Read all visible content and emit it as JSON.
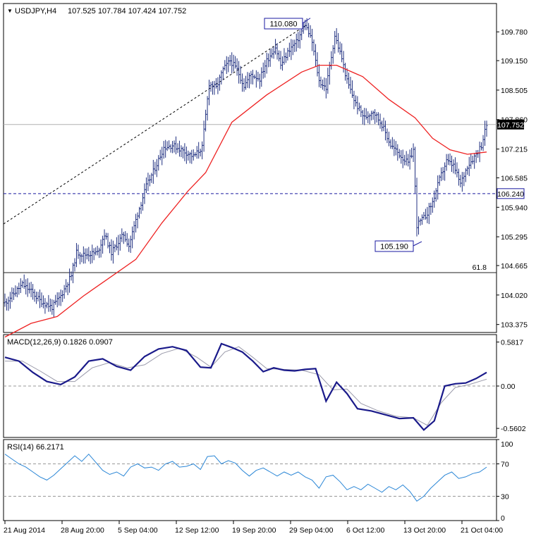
{
  "chart_data": [
    {
      "type": "ohlc",
      "title": "USDJPY,H4",
      "ohlc_readout": "107.525 107.784 107.424 107.752",
      "current_price_label": "107.752",
      "ylim": [
        103.2,
        110.4
      ],
      "y_ticks": [
        "109.780",
        "109.150",
        "108.505",
        "107.860",
        "107.215",
        "106.585",
        "105.940",
        "105.295",
        "104.665",
        "104.020",
        "103.375"
      ],
      "annotations": [
        {
          "label": "110.080",
          "value": 110.08
        },
        {
          "label": "105.190",
          "value": 105.19
        },
        {
          "label": "106.240",
          "value": 106.24
        },
        {
          "label": "61.8",
          "value": 104.51
        }
      ],
      "ma_series_name": "",
      "ma_color": "#ee2222",
      "bar_color": "#203080",
      "pivots": [
        {
          "x": 0,
          "y": 103.85
        },
        {
          "x": 5,
          "y": 104.05
        },
        {
          "x": 10,
          "y": 104.25
        },
        {
          "x": 15,
          "y": 104.1
        },
        {
          "x": 20,
          "y": 103.9
        },
        {
          "x": 27,
          "y": 103.75
        },
        {
          "x": 32,
          "y": 104.0
        },
        {
          "x": 38,
          "y": 104.45
        },
        {
          "x": 41,
          "y": 104.95
        },
        {
          "x": 45,
          "y": 104.9
        },
        {
          "x": 53,
          "y": 104.95
        },
        {
          "x": 57,
          "y": 105.35
        },
        {
          "x": 61,
          "y": 104.95
        },
        {
          "x": 68,
          "y": 105.35
        },
        {
          "x": 71,
          "y": 105.1
        },
        {
          "x": 76,
          "y": 105.8
        },
        {
          "x": 81,
          "y": 106.4
        },
        {
          "x": 86,
          "y": 106.8
        },
        {
          "x": 91,
          "y": 107.25
        },
        {
          "x": 96,
          "y": 107.3
        },
        {
          "x": 101,
          "y": 107.2
        },
        {
          "x": 108,
          "y": 107.05
        },
        {
          "x": 113,
          "y": 107.25
        },
        {
          "x": 117,
          "y": 108.65
        },
        {
          "x": 121,
          "y": 108.55
        },
        {
          "x": 125,
          "y": 108.95
        },
        {
          "x": 129,
          "y": 109.15
        },
        {
          "x": 133,
          "y": 108.95
        },
        {
          "x": 137,
          "y": 108.6
        },
        {
          "x": 141,
          "y": 108.85
        },
        {
          "x": 146,
          "y": 108.75
        },
        {
          "x": 150,
          "y": 109.15
        },
        {
          "x": 155,
          "y": 109.45
        },
        {
          "x": 158,
          "y": 109.05
        },
        {
          "x": 163,
          "y": 109.4
        },
        {
          "x": 167,
          "y": 109.55
        },
        {
          "x": 172,
          "y": 109.95
        },
        {
          "x": 176,
          "y": 109.55
        },
        {
          "x": 180,
          "y": 108.7
        },
        {
          "x": 184,
          "y": 108.55
        },
        {
          "x": 189,
          "y": 109.7
        },
        {
          "x": 193,
          "y": 109.2
        },
        {
          "x": 196,
          "y": 108.7
        },
        {
          "x": 201,
          "y": 108.2
        },
        {
          "x": 206,
          "y": 107.9
        },
        {
          "x": 211,
          "y": 108.05
        },
        {
          "x": 216,
          "y": 107.75
        },
        {
          "x": 221,
          "y": 107.3
        },
        {
          "x": 226,
          "y": 107.1
        },
        {
          "x": 231,
          "y": 106.9
        },
        {
          "x": 234,
          "y": 107.2
        },
        {
          "x": 236,
          "y": 105.55
        },
        {
          "x": 241,
          "y": 105.75
        },
        {
          "x": 245,
          "y": 106.05
        },
        {
          "x": 249,
          "y": 106.55
        },
        {
          "x": 253,
          "y": 106.95
        },
        {
          "x": 257,
          "y": 106.85
        },
        {
          "x": 261,
          "y": 106.45
        },
        {
          "x": 265,
          "y": 106.85
        },
        {
          "x": 269,
          "y": 107.05
        },
        {
          "x": 273,
          "y": 107.3
        },
        {
          "x": 276,
          "y": 107.75
        }
      ],
      "ma_values": [
        {
          "x": 0,
          "y": 103.1
        },
        {
          "x": 15,
          "y": 103.4
        },
        {
          "x": 30,
          "y": 103.55
        },
        {
          "x": 45,
          "y": 104.0
        },
        {
          "x": 60,
          "y": 104.4
        },
        {
          "x": 75,
          "y": 104.8
        },
        {
          "x": 90,
          "y": 105.6
        },
        {
          "x": 105,
          "y": 106.3
        },
        {
          "x": 115,
          "y": 106.7
        },
        {
          "x": 130,
          "y": 107.8
        },
        {
          "x": 150,
          "y": 108.4
        },
        {
          "x": 170,
          "y": 108.9
        },
        {
          "x": 180,
          "y": 109.05
        },
        {
          "x": 190,
          "y": 109.05
        },
        {
          "x": 205,
          "y": 108.8
        },
        {
          "x": 220,
          "y": 108.3
        },
        {
          "x": 235,
          "y": 107.9
        },
        {
          "x": 245,
          "y": 107.45
        },
        {
          "x": 255,
          "y": 107.2
        },
        {
          "x": 265,
          "y": 107.1
        },
        {
          "x": 276,
          "y": 107.15
        }
      ]
    },
    {
      "type": "line",
      "title": "MACD(12,26,9) 0.1826 0.0907",
      "ylim": [
        -0.68,
        0.68
      ],
      "y_ticks": [
        "0.5817",
        "0.00",
        "-0.5602"
      ],
      "series": [
        {
          "name": "",
          "color": "#1a1a8a",
          "values": [
            {
              "x": 0,
              "y": 0.38
            },
            {
              "x": 8,
              "y": 0.33
            },
            {
              "x": 16,
              "y": 0.18
            },
            {
              "x": 24,
              "y": 0.06
            },
            {
              "x": 32,
              "y": 0.02
            },
            {
              "x": 40,
              "y": 0.12
            },
            {
              "x": 48,
              "y": 0.33
            },
            {
              "x": 56,
              "y": 0.36
            },
            {
              "x": 64,
              "y": 0.26
            },
            {
              "x": 72,
              "y": 0.21
            },
            {
              "x": 80,
              "y": 0.39
            },
            {
              "x": 88,
              "y": 0.49
            },
            {
              "x": 96,
              "y": 0.52
            },
            {
              "x": 104,
              "y": 0.47
            },
            {
              "x": 112,
              "y": 0.25
            },
            {
              "x": 118,
              "y": 0.24
            },
            {
              "x": 124,
              "y": 0.56
            },
            {
              "x": 130,
              "y": 0.51
            },
            {
              "x": 136,
              "y": 0.45
            },
            {
              "x": 142,
              "y": 0.33
            },
            {
              "x": 148,
              "y": 0.19
            },
            {
              "x": 154,
              "y": 0.24
            },
            {
              "x": 160,
              "y": 0.21
            },
            {
              "x": 166,
              "y": 0.2
            },
            {
              "x": 172,
              "y": 0.22
            },
            {
              "x": 178,
              "y": 0.23
            },
            {
              "x": 184,
              "y": -0.2
            },
            {
              "x": 190,
              "y": 0.05
            },
            {
              "x": 196,
              "y": -0.1
            },
            {
              "x": 202,
              "y": -0.3
            },
            {
              "x": 210,
              "y": -0.33
            },
            {
              "x": 218,
              "y": -0.38
            },
            {
              "x": 226,
              "y": -0.43
            },
            {
              "x": 234,
              "y": -0.42
            },
            {
              "x": 240,
              "y": -0.58
            },
            {
              "x": 246,
              "y": -0.46
            },
            {
              "x": 252,
              "y": 0.0
            },
            {
              "x": 258,
              "y": 0.03
            },
            {
              "x": 264,
              "y": 0.04
            },
            {
              "x": 270,
              "y": 0.1
            },
            {
              "x": 276,
              "y": 0.18
            }
          ]
        },
        {
          "name": "",
          "color": "#9a9aaa",
          "values": [
            {
              "x": 0,
              "y": 0.33
            },
            {
              "x": 10,
              "y": 0.33
            },
            {
              "x": 20,
              "y": 0.2
            },
            {
              "x": 30,
              "y": 0.06
            },
            {
              "x": 40,
              "y": 0.06
            },
            {
              "x": 50,
              "y": 0.24
            },
            {
              "x": 60,
              "y": 0.31
            },
            {
              "x": 70,
              "y": 0.24
            },
            {
              "x": 80,
              "y": 0.28
            },
            {
              "x": 90,
              "y": 0.43
            },
            {
              "x": 100,
              "y": 0.5
            },
            {
              "x": 110,
              "y": 0.38
            },
            {
              "x": 118,
              "y": 0.25
            },
            {
              "x": 126,
              "y": 0.45
            },
            {
              "x": 134,
              "y": 0.52
            },
            {
              "x": 142,
              "y": 0.38
            },
            {
              "x": 150,
              "y": 0.23
            },
            {
              "x": 160,
              "y": 0.22
            },
            {
              "x": 170,
              "y": 0.21
            },
            {
              "x": 180,
              "y": 0.15
            },
            {
              "x": 188,
              "y": -0.05
            },
            {
              "x": 196,
              "y": -0.04
            },
            {
              "x": 204,
              "y": -0.23
            },
            {
              "x": 214,
              "y": -0.33
            },
            {
              "x": 224,
              "y": -0.4
            },
            {
              "x": 234,
              "y": -0.42
            },
            {
              "x": 242,
              "y": -0.52
            },
            {
              "x": 250,
              "y": -0.22
            },
            {
              "x": 258,
              "y": -0.02
            },
            {
              "x": 266,
              "y": 0.02
            },
            {
              "x": 276,
              "y": 0.09
            }
          ]
        }
      ]
    },
    {
      "type": "line",
      "title": "RSI(14) 66.2171",
      "ylim": [
        0,
        100
      ],
      "y_ticks": [
        "100",
        "70",
        "30",
        "0"
      ],
      "series": [
        {
          "name": "",
          "color": "#2a86d6",
          "values": [
            {
              "x": 0,
              "y": 82
            },
            {
              "x": 4,
              "y": 76
            },
            {
              "x": 8,
              "y": 70
            },
            {
              "x": 12,
              "y": 66
            },
            {
              "x": 16,
              "y": 60
            },
            {
              "x": 20,
              "y": 54
            },
            {
              "x": 24,
              "y": 50
            },
            {
              "x": 28,
              "y": 56
            },
            {
              "x": 32,
              "y": 64
            },
            {
              "x": 36,
              "y": 72
            },
            {
              "x": 40,
              "y": 80
            },
            {
              "x": 44,
              "y": 73
            },
            {
              "x": 48,
              "y": 82
            },
            {
              "x": 52,
              "y": 72
            },
            {
              "x": 56,
              "y": 62
            },
            {
              "x": 60,
              "y": 57
            },
            {
              "x": 64,
              "y": 60
            },
            {
              "x": 68,
              "y": 55
            },
            {
              "x": 72,
              "y": 66
            },
            {
              "x": 76,
              "y": 70
            },
            {
              "x": 80,
              "y": 65
            },
            {
              "x": 84,
              "y": 66
            },
            {
              "x": 88,
              "y": 62
            },
            {
              "x": 92,
              "y": 70
            },
            {
              "x": 96,
              "y": 73
            },
            {
              "x": 100,
              "y": 66
            },
            {
              "x": 104,
              "y": 67
            },
            {
              "x": 108,
              "y": 70
            },
            {
              "x": 112,
              "y": 63
            },
            {
              "x": 116,
              "y": 79
            },
            {
              "x": 120,
              "y": 80
            },
            {
              "x": 124,
              "y": 70
            },
            {
              "x": 128,
              "y": 74
            },
            {
              "x": 132,
              "y": 71
            },
            {
              "x": 136,
              "y": 62
            },
            {
              "x": 140,
              "y": 55
            },
            {
              "x": 144,
              "y": 62
            },
            {
              "x": 148,
              "y": 65
            },
            {
              "x": 152,
              "y": 60
            },
            {
              "x": 156,
              "y": 55
            },
            {
              "x": 160,
              "y": 60
            },
            {
              "x": 164,
              "y": 56
            },
            {
              "x": 168,
              "y": 60
            },
            {
              "x": 172,
              "y": 54
            },
            {
              "x": 176,
              "y": 50
            },
            {
              "x": 180,
              "y": 40
            },
            {
              "x": 184,
              "y": 54
            },
            {
              "x": 188,
              "y": 56
            },
            {
              "x": 192,
              "y": 48
            },
            {
              "x": 196,
              "y": 38
            },
            {
              "x": 200,
              "y": 42
            },
            {
              "x": 204,
              "y": 38
            },
            {
              "x": 208,
              "y": 45
            },
            {
              "x": 212,
              "y": 40
            },
            {
              "x": 216,
              "y": 35
            },
            {
              "x": 220,
              "y": 42
            },
            {
              "x": 224,
              "y": 38
            },
            {
              "x": 228,
              "y": 44
            },
            {
              "x": 232,
              "y": 36
            },
            {
              "x": 236,
              "y": 24
            },
            {
              "x": 240,
              "y": 30
            },
            {
              "x": 244,
              "y": 40
            },
            {
              "x": 248,
              "y": 48
            },
            {
              "x": 252,
              "y": 56
            },
            {
              "x": 256,
              "y": 60
            },
            {
              "x": 260,
              "y": 52
            },
            {
              "x": 264,
              "y": 54
            },
            {
              "x": 268,
              "y": 58
            },
            {
              "x": 272,
              "y": 60
            },
            {
              "x": 276,
              "y": 66
            }
          ]
        }
      ]
    }
  ],
  "x_axis_labels": [
    "21 Aug 2014",
    "28 Aug 20:00",
    "5 Sep 04:00",
    "12 Sep 12:00",
    "19 Sep 20:00",
    "29 Sep 04:00",
    "6 Oct 12:00",
    "13 Oct 20:00",
    "21 Oct 04:00"
  ]
}
